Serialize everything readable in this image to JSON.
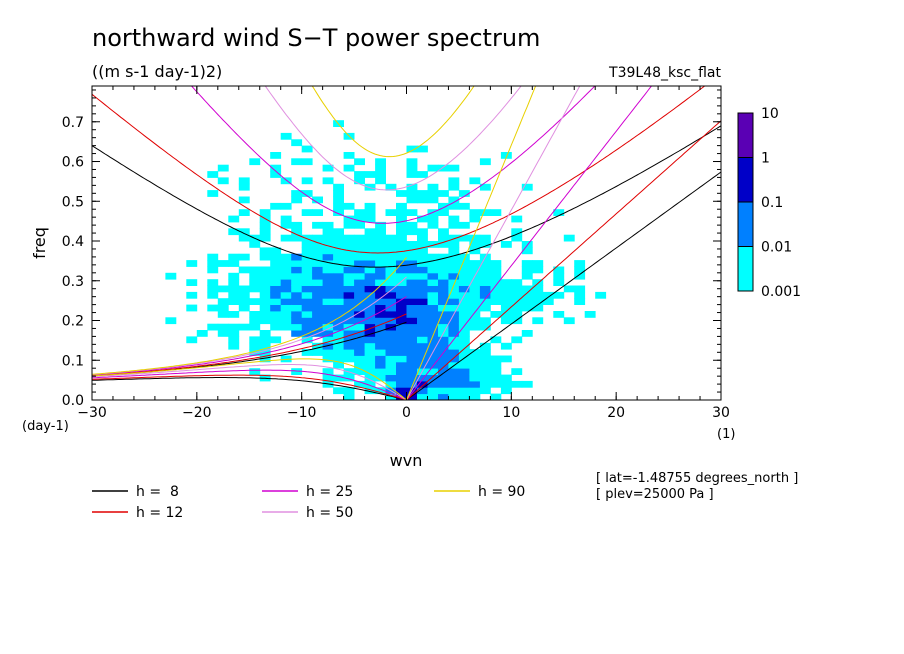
{
  "chart_data": {
    "type": "heatmap",
    "title": "northward wind S−T power spectrum",
    "units_label": "((m s-1 day-1)2)",
    "dataset_label": "T39L48_ksc_flat",
    "xlabel": "wvn",
    "ylabel": "freq",
    "x_unit": "(1)",
    "y_unit": "(day-1)",
    "xlim": [
      -30,
      30
    ],
    "ylim": [
      0,
      0.79
    ],
    "x_ticks": [
      -30,
      -20,
      -10,
      0,
      10,
      20,
      30
    ],
    "y_ticks": [
      0.0,
      0.1,
      0.2,
      0.3,
      0.4,
      0.5,
      0.6,
      0.7
    ],
    "x_tick_labels": [
      "−30",
      "−20",
      "−10",
      "0",
      "10",
      "20",
      "30"
    ],
    "y_tick_labels": [
      "0.0",
      "0.1",
      "0.2",
      "0.3",
      "0.4",
      "0.5",
      "0.6",
      "0.7"
    ],
    "colorbar": {
      "levels": [
        "0.001",
        "0.01",
        "0.1",
        "1",
        "10"
      ],
      "colors": [
        "#00ffff",
        "#0080ff",
        "#0000c8",
        "#5a00b4"
      ]
    },
    "dispersion_curves": [
      {
        "name": "h =  8",
        "h": 8,
        "color": "#000000"
      },
      {
        "name": "h = 12",
        "h": 12,
        "color": "#e00000"
      },
      {
        "name": "h = 25",
        "h": 25,
        "color": "#d000d0"
      },
      {
        "name": "h = 50",
        "h": 50,
        "color": "#e090e0"
      },
      {
        "name": "h = 90",
        "h": 90,
        "color": "#e8d000"
      }
    ],
    "info_lines": [
      "[ lat=-1.48755 degrees_north ]",
      "[ plev=25000 Pa ]"
    ]
  }
}
